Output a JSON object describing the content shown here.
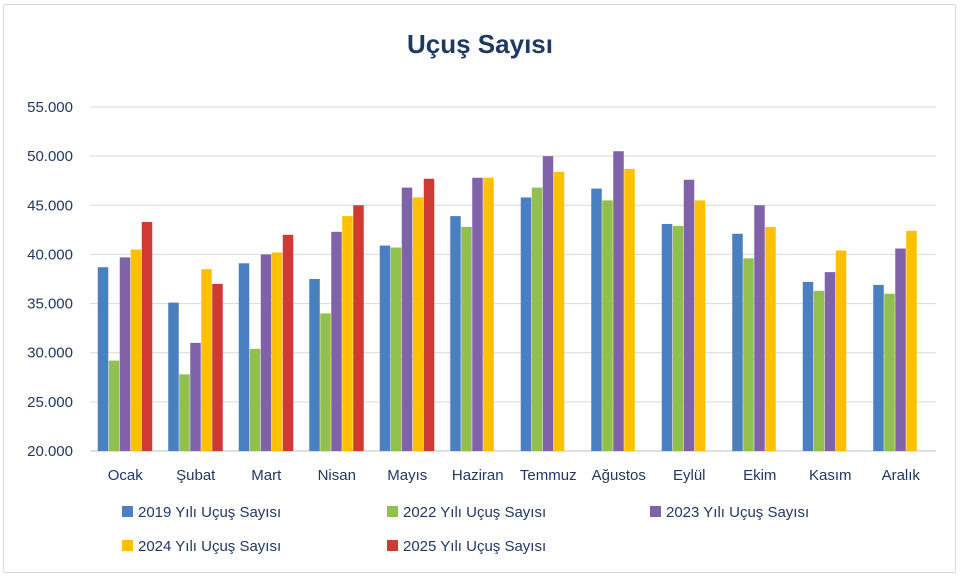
{
  "chart_data": {
    "type": "bar",
    "title": "Uçuş Sayısı",
    "xlabel": "",
    "ylabel": "",
    "ylim": [
      20000,
      55000
    ],
    "yticks": [
      20000,
      25000,
      30000,
      35000,
      40000,
      45000,
      50000,
      55000
    ],
    "ytick_labels": [
      "20.000",
      "25.000",
      "30.000",
      "35.000",
      "40.000",
      "45.000",
      "50.000",
      "55.000"
    ],
    "grid": true,
    "legend_position": "bottom",
    "categories": [
      "Ocak",
      "Şubat",
      "Mart",
      "Nisan",
      "Mayıs",
      "Haziran",
      "Temmuz",
      "Ağustos",
      "Eylül",
      "Ekim",
      "Kasım",
      "Aralık"
    ],
    "series": [
      {
        "name": "2019 Yılı Uçuş Sayısı",
        "color": "#4a7fc1",
        "values": [
          38700,
          35100,
          39100,
          37500,
          40900,
          43900,
          45800,
          46700,
          43100,
          42100,
          37200,
          36900
        ]
      },
      {
        "name": "2022 Yılı Uçuş Sayısı",
        "color": "#92c04f",
        "values": [
          29200,
          27800,
          30400,
          34000,
          40700,
          42800,
          46800,
          45500,
          42900,
          39600,
          36300,
          36000
        ]
      },
      {
        "name": "2023 Yılı Uçuş Sayısı",
        "color": "#8062a8",
        "values": [
          39700,
          31000,
          40000,
          42300,
          46800,
          47800,
          50000,
          50500,
          47600,
          45000,
          38200,
          40600
        ]
      },
      {
        "name": "2024 Yılı Uçuş Sayısı",
        "color": "#ffc000",
        "values": [
          40500,
          38500,
          40200,
          43900,
          45800,
          47800,
          48400,
          48700,
          45500,
          42800,
          40400,
          42400
        ]
      },
      {
        "name": "2025 Yılı Uçuş Sayısı",
        "color": "#d03a34",
        "values": [
          43300,
          37000,
          42000,
          45000,
          47700,
          null,
          null,
          null,
          null,
          null,
          null,
          null
        ]
      }
    ]
  }
}
